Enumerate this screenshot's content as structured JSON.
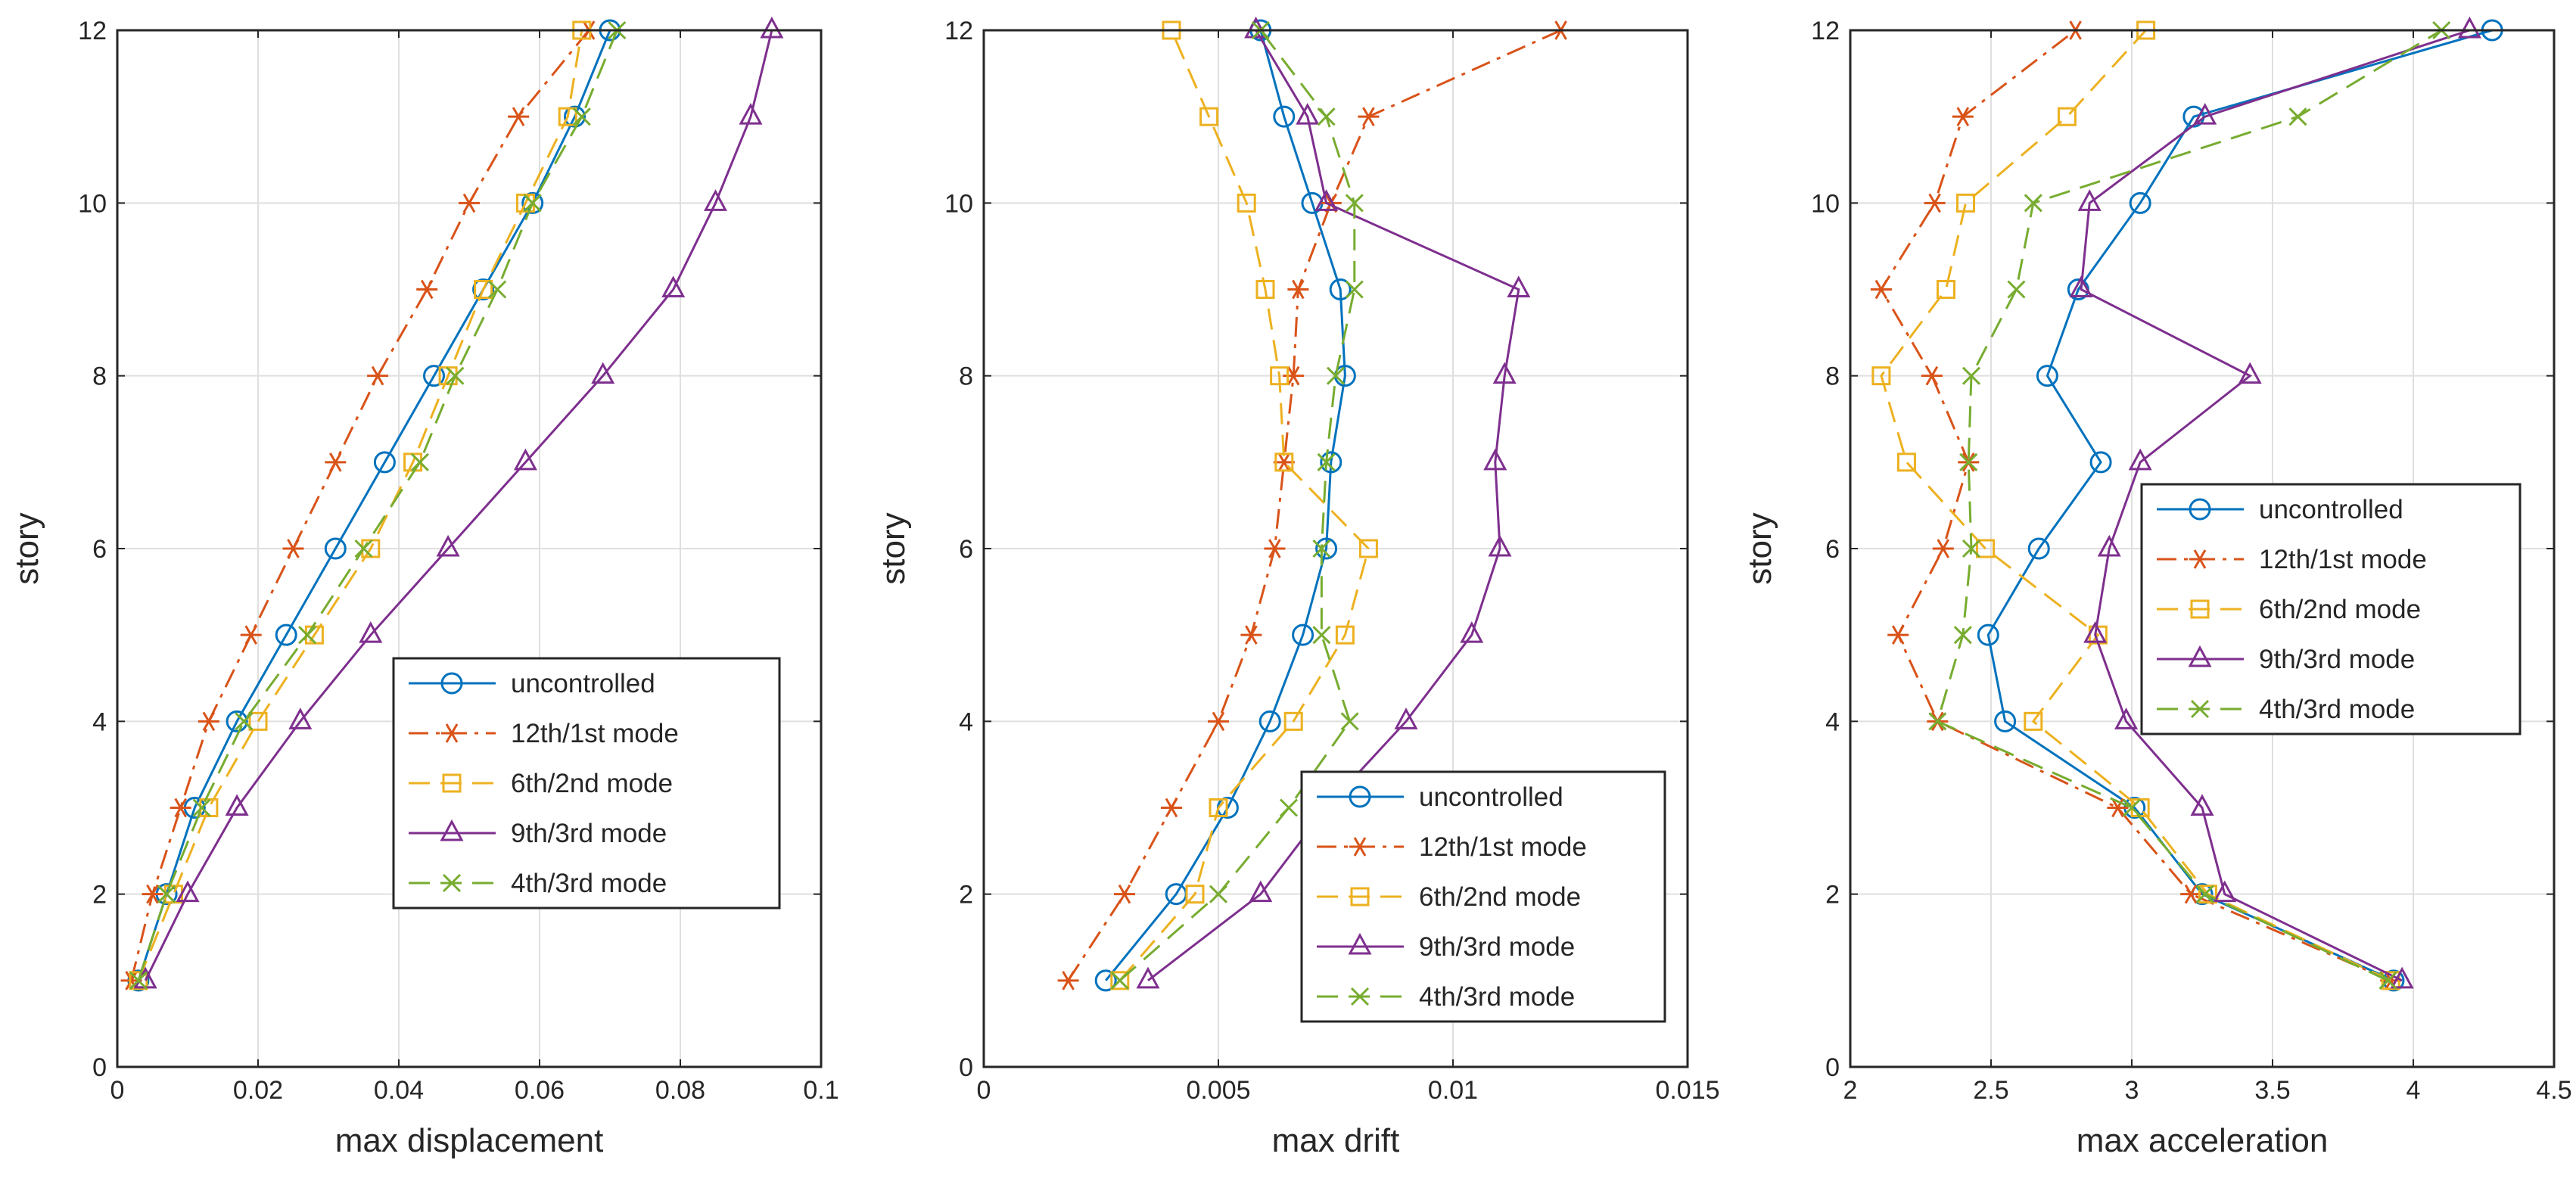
{
  "chart_data": [
    {
      "type": "line",
      "xlabel": "max displacement",
      "ylabel": "story",
      "xlim": [
        0,
        0.1
      ],
      "ylim": [
        0,
        12
      ],
      "xticks": [
        "0",
        "0.02",
        "0.04",
        "0.06",
        "0.08",
        "0.1"
      ],
      "yticks": [
        "0",
        "2",
        "4",
        "6",
        "8",
        "10",
        "12"
      ],
      "grid": true,
      "legend_position": "lower-right",
      "stories": [
        1,
        2,
        3,
        4,
        5,
        6,
        7,
        8,
        9,
        10,
        11,
        12
      ],
      "series": [
        {
          "name": "uncontrolled",
          "values": [
            0.003,
            0.007,
            0.011,
            0.017,
            0.024,
            0.031,
            0.038,
            0.045,
            0.052,
            0.059,
            0.065,
            0.07
          ]
        },
        {
          "name": "12th/1st mode",
          "values": [
            0.002,
            0.005,
            0.009,
            0.013,
            0.019,
            0.025,
            0.031,
            0.037,
            0.044,
            0.05,
            0.057,
            0.067
          ]
        },
        {
          "name": "6th/2nd mode",
          "values": [
            0.003,
            0.008,
            0.013,
            0.02,
            0.028,
            0.036,
            0.042,
            0.047,
            0.052,
            0.058,
            0.064,
            0.066
          ]
        },
        {
          "name": "9th/3rd mode",
          "values": [
            0.004,
            0.01,
            0.017,
            0.026,
            0.036,
            0.047,
            0.058,
            0.069,
            0.079,
            0.085,
            0.09,
            0.093
          ]
        },
        {
          "name": "4th/3rd mode",
          "values": [
            0.003,
            0.007,
            0.012,
            0.018,
            0.027,
            0.035,
            0.043,
            0.048,
            0.054,
            0.059,
            0.066,
            0.071
          ]
        }
      ]
    },
    {
      "type": "line",
      "xlabel": "max drift",
      "ylabel": "story",
      "xlim": [
        0,
        0.015
      ],
      "ylim": [
        0,
        12
      ],
      "xticks": [
        "0",
        "0.005",
        "0.01",
        "0.015"
      ],
      "yticks": [
        "0",
        "2",
        "4",
        "6",
        "8",
        "10",
        "12"
      ],
      "grid": true,
      "legend_position": "lower-right",
      "stories": [
        1,
        2,
        3,
        4,
        5,
        6,
        7,
        8,
        9,
        10,
        11,
        12
      ],
      "series": [
        {
          "name": "uncontrolled",
          "values": [
            0.0026,
            0.0041,
            0.0052,
            0.0061,
            0.0068,
            0.0073,
            0.0074,
            0.0077,
            0.0076,
            0.007,
            0.0064,
            0.0059
          ]
        },
        {
          "name": "12th/1st mode",
          "values": [
            0.0018,
            0.003,
            0.004,
            0.005,
            0.0057,
            0.0062,
            0.0064,
            0.0066,
            0.0067,
            0.0074,
            0.0082,
            0.0123
          ]
        },
        {
          "name": "6th/2nd mode",
          "values": [
            0.0029,
            0.0045,
            0.005,
            0.0066,
            0.0077,
            0.0082,
            0.0064,
            0.0063,
            0.006,
            0.0056,
            0.0048,
            0.004
          ]
        },
        {
          "name": "9th/3rd mode",
          "values": [
            0.0035,
            0.0059,
            0.0073,
            0.009,
            0.0104,
            0.011,
            0.0109,
            0.0111,
            0.0114,
            0.0073,
            0.0069,
            0.0058
          ]
        },
        {
          "name": "4th/3rd mode",
          "values": [
            0.0029,
            0.005,
            0.0065,
            0.0078,
            0.0072,
            0.0072,
            0.0073,
            0.0075,
            0.0079,
            0.0079,
            0.0073,
            0.0059
          ]
        }
      ]
    },
    {
      "type": "line",
      "xlabel": "max acceleration",
      "ylabel": "story",
      "xlim": [
        2,
        4.5
      ],
      "ylim": [
        0,
        12
      ],
      "xticks": [
        "2",
        "2.5",
        "3",
        "3.5",
        "4",
        "4.5"
      ],
      "yticks": [
        "0",
        "2",
        "4",
        "6",
        "8",
        "10",
        "12"
      ],
      "grid": true,
      "legend_position": "center-right",
      "stories": [
        1,
        2,
        3,
        4,
        5,
        6,
        7,
        8,
        9,
        10,
        11,
        12
      ],
      "series": [
        {
          "name": "uncontrolled",
          "values": [
            3.93,
            3.25,
            3.01,
            2.55,
            2.49,
            2.67,
            2.89,
            2.7,
            2.81,
            3.03,
            3.22,
            4.28
          ]
        },
        {
          "name": "12th/1st mode",
          "values": [
            3.92,
            3.21,
            2.95,
            2.31,
            2.17,
            2.33,
            2.42,
            2.29,
            2.11,
            2.3,
            2.4,
            2.8
          ]
        },
        {
          "name": "6th/2nd mode",
          "values": [
            3.92,
            3.27,
            3.03,
            2.65,
            2.88,
            2.48,
            2.2,
            2.11,
            2.34,
            2.41,
            2.77,
            3.05
          ]
        },
        {
          "name": "9th/3rd mode",
          "values": [
            3.96,
            3.33,
            3.25,
            2.98,
            2.87,
            2.92,
            3.03,
            3.42,
            2.82,
            2.85,
            3.26,
            4.2
          ]
        },
        {
          "name": "4th/3rd mode",
          "values": [
            3.91,
            3.26,
            3.0,
            2.31,
            2.4,
            2.43,
            2.42,
            2.43,
            2.59,
            2.65,
            3.59,
            4.1
          ]
        }
      ]
    }
  ],
  "series_styles": [
    {
      "name": "uncontrolled",
      "color": "#0072BD",
      "dash": "solid",
      "marker": "circle"
    },
    {
      "name": "12th/1st mode",
      "color": "#D95319",
      "dash": "dashdot",
      "marker": "asterisk"
    },
    {
      "name": "6th/2nd mode",
      "color": "#EDB120",
      "dash": "dashed",
      "marker": "square"
    },
    {
      "name": "9th/3rd mode",
      "color": "#7E2F8E",
      "dash": "solid",
      "marker": "triangle"
    },
    {
      "name": "4th/3rd mode",
      "color": "#77AC30",
      "dash": "dashed",
      "marker": "cross"
    }
  ]
}
